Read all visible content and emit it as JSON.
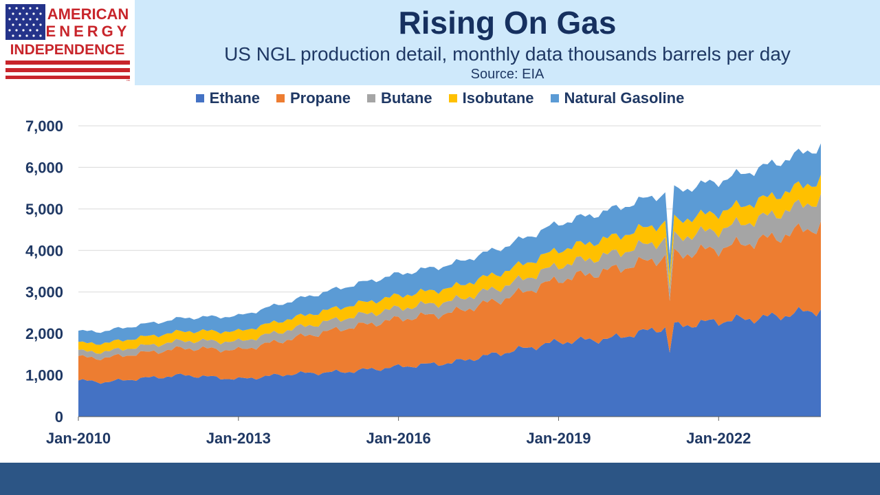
{
  "logo": {
    "line1": "AMERICAN",
    "line2": "ENERGY",
    "line3": "INDEPENDENCE",
    "tm": "™"
  },
  "colors": {
    "header_band": "#cfe9fb",
    "text_dark": "#1f3864",
    "footer": "#2c5585"
  },
  "chart_data": {
    "type": "area",
    "stacked": true,
    "title": "Rising On Gas",
    "subtitle": "US NGL production detail, monthly data thousands barrels per day",
    "source": "Source: EIA",
    "xlabel": "",
    "ylabel": "",
    "x_start": "Jan-2010",
    "x_end": "Dec-2023",
    "frequency": "monthly",
    "x_tick_labels": [
      "Jan-2010",
      "Jan-2013",
      "Jan-2016",
      "Jan-2019",
      "Jan-2022"
    ],
    "ylim": [
      0,
      7000
    ],
    "y_ticks": [
      0,
      1000,
      2000,
      3000,
      4000,
      5000,
      6000,
      7000
    ],
    "y_tick_labels": [
      "0",
      "1,000",
      "2,000",
      "3,000",
      "4,000",
      "5,000",
      "6,000",
      "7,000"
    ],
    "grid": "horizontal",
    "legend_position": "top",
    "series": [
      {
        "name": "Ethane",
        "color": "#4472c4",
        "anchors": [
          [
            "Jan-2010",
            870
          ],
          [
            "Jul-2010",
            830
          ],
          [
            "Jan-2011",
            900
          ],
          [
            "Jan-2012",
            1000
          ],
          [
            "Jan-2013",
            900
          ],
          [
            "Jan-2014",
            1030
          ],
          [
            "Jan-2015",
            1080
          ],
          [
            "Jan-2016",
            1200
          ],
          [
            "Jan-2017",
            1300
          ],
          [
            "Jan-2018",
            1550
          ],
          [
            "Jan-2019",
            1800
          ],
          [
            "Jan-2020",
            1880
          ],
          [
            "Jan-2021",
            2150
          ],
          [
            "Jan-2022",
            2300
          ],
          [
            "Jan-2023",
            2400
          ],
          [
            "Dec-2023",
            2580
          ]
        ]
      },
      {
        "name": "Propane",
        "color": "#ed7d31",
        "anchors": [
          [
            "Jan-2010",
            560
          ],
          [
            "Jan-2011",
            600
          ],
          [
            "Jan-2012",
            650
          ],
          [
            "Jan-2013",
            700
          ],
          [
            "Jan-2014",
            850
          ],
          [
            "Jan-2015",
            1050
          ],
          [
            "Jan-2016",
            1150
          ],
          [
            "Jan-2017",
            1200
          ],
          [
            "Jan-2018",
            1300
          ],
          [
            "Jan-2019",
            1500
          ],
          [
            "Jan-2020",
            1650
          ],
          [
            "Jan-2021",
            1700
          ],
          [
            "Jan-2022",
            1750
          ],
          [
            "Jan-2023",
            1900
          ],
          [
            "Dec-2023",
            2020
          ]
        ]
      },
      {
        "name": "Butane",
        "color": "#a5a5a5",
        "anchors": [
          [
            "Jan-2010",
            140
          ],
          [
            "Jan-2012",
            180
          ],
          [
            "Jan-2014",
            230
          ],
          [
            "Jan-2016",
            260
          ],
          [
            "Jan-2018",
            300
          ],
          [
            "Jan-2020",
            380
          ],
          [
            "Jan-2022",
            450
          ],
          [
            "Dec-2023",
            640
          ]
        ]
      },
      {
        "name": "Isobutane",
        "color": "#ffc000",
        "anchors": [
          [
            "Jan-2010",
            200
          ],
          [
            "Jan-2012",
            230
          ],
          [
            "Jan-2014",
            260
          ],
          [
            "Jan-2016",
            300
          ],
          [
            "Jan-2018",
            350
          ],
          [
            "Jan-2020",
            400
          ],
          [
            "Jan-2022",
            420
          ],
          [
            "Dec-2023",
            470
          ]
        ]
      },
      {
        "name": "Natural Gasoline",
        "color": "#5b9bd5",
        "anchors": [
          [
            "Jan-2010",
            280
          ],
          [
            "Jan-2012",
            320
          ],
          [
            "Jan-2014",
            420
          ],
          [
            "Jan-2016",
            520
          ],
          [
            "Jan-2018",
            600
          ],
          [
            "Jan-2020",
            670
          ],
          [
            "Jan-2022",
            750
          ],
          [
            "Dec-2023",
            800
          ]
        ]
      }
    ],
    "dips": [
      {
        "month": "Feb-2021",
        "factor": 0.72
      }
    ]
  }
}
